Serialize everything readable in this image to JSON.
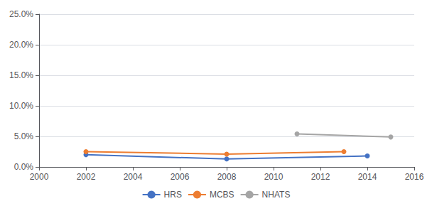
{
  "chart_data": {
    "type": "line",
    "series": [
      {
        "name": "HRS",
        "color": "#4472C4",
        "marker": "circle",
        "x": [
          2002,
          2008,
          2014
        ],
        "values": [
          0.02,
          0.013,
          0.018
        ]
      },
      {
        "name": "MCBS",
        "color": "#ED7D31",
        "marker": "circle",
        "x": [
          2002,
          2008,
          2013
        ],
        "values": [
          0.025,
          0.021,
          0.025
        ]
      },
      {
        "name": "NHATS",
        "color": "#A5A5A5",
        "marker": "circle",
        "x": [
          2011,
          2015
        ],
        "values": [
          0.054,
          0.049
        ]
      }
    ],
    "xlim": [
      2000,
      2016
    ],
    "xticks": [
      2000,
      2002,
      2004,
      2006,
      2008,
      2010,
      2012,
      2014,
      2016
    ],
    "ylim": [
      0.0,
      0.25
    ],
    "yticks": [
      {
        "value": 0.0,
        "label": "0.0%"
      },
      {
        "value": 0.05,
        "label": "5.0%"
      },
      {
        "value": 0.1,
        "label": "10.0%"
      },
      {
        "value": 0.15,
        "label": "15.0%"
      },
      {
        "value": 0.2,
        "label": "20.0%"
      },
      {
        "value": 0.25,
        "label": "25.0%"
      }
    ],
    "grid": true,
    "legend": "bottom"
  }
}
